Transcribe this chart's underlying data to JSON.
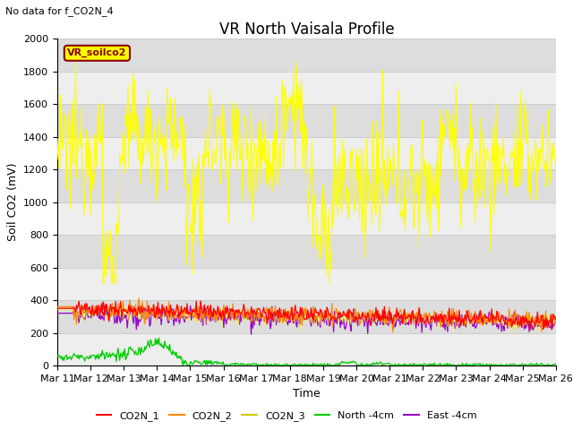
{
  "title": "VR North Vaisala Profile",
  "subtitle": "No data for f_CO2N_4",
  "ylabel": "Soil CO2 (mV)",
  "xlabel": "Time",
  "ylim": [
    0,
    2000
  ],
  "x_tick_labels": [
    "Mar 11",
    "Mar 12",
    "Mar 13",
    "Mar 14",
    "Mar 15",
    "Mar 16",
    "Mar 17",
    "Mar 18",
    "Mar 19",
    "Mar 20",
    "Mar 21",
    "Mar 22",
    "Mar 23",
    "Mar 24",
    "Mar 25",
    "Mar 26"
  ],
  "legend_entries": [
    "CO2N_1",
    "CO2N_2",
    "CO2N_3",
    "North -4cm",
    "East -4cm"
  ],
  "legend_colors": [
    "#ff0000",
    "#ff8800",
    "#ffff00",
    "#00cc00",
    "#9900cc"
  ],
  "vr_soilco2_box_color": "#ffff00",
  "vr_soilco2_text_color": "#880000",
  "vr_soilco2_border_color": "#880000",
  "background_color": "#ffffff",
  "plot_bg_light": "#eeeeee",
  "plot_bg_dark": "#dddddd",
  "grid_color": "#cccccc",
  "title_fontsize": 12,
  "label_fontsize": 9,
  "tick_fontsize": 8
}
